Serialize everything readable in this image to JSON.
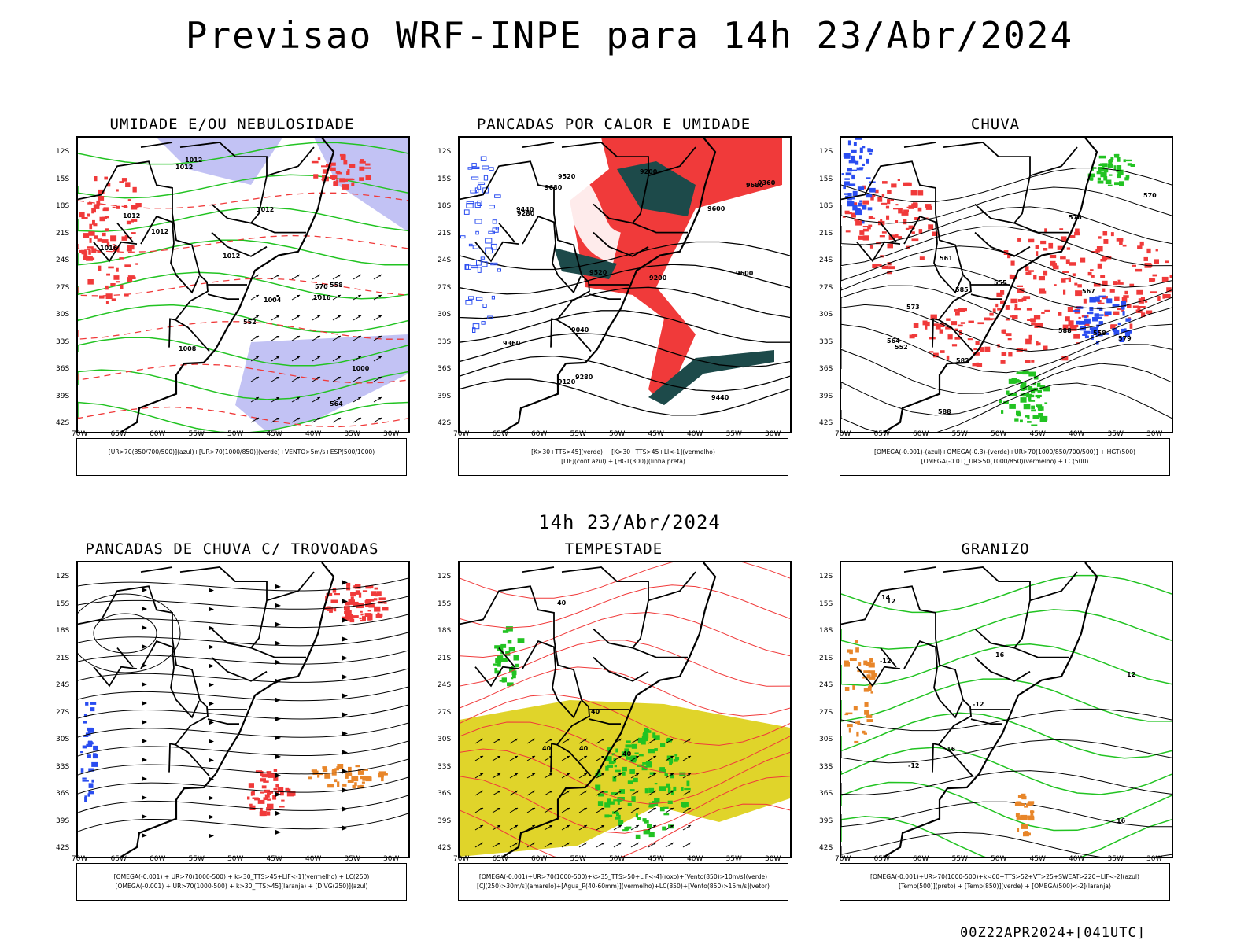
{
  "title": "Previsao WRF-INPE  para 14h 23/Abr/2024",
  "subtitle": "14h 23/Abr/2024",
  "footer": "00Z22APR2024+[041UTC]",
  "lat_ticks": [
    "12S",
    "15S",
    "18S",
    "21S",
    "24S",
    "27S",
    "30S",
    "33S",
    "36S",
    "39S",
    "42S"
  ],
  "lon_ticks": [
    "70W",
    "65W",
    "60W",
    "55W",
    "50W",
    "45W",
    "40W",
    "35W",
    "30W"
  ],
  "colors": {
    "green": "#22c322",
    "red": "#f03a3a",
    "blue": "#2a4df0",
    "lavender": "#a8a8f0",
    "darkteal": "#1d4a4a",
    "yellow": "#e0d42a",
    "orange": "#e8862a"
  },
  "panels": [
    {
      "title": "UMIDADE E/OU NEBULOSIDADE",
      "legend": [
        "[UR>70(850/700/500)](azul)+[UR>70(1000/850)](verde)+VENTO>5m/s+ESP(500/1000)"
      ],
      "labels": [
        "1012",
        "1012",
        "1012",
        "1012",
        "1008",
        "1012",
        "1016",
        "1004",
        "1000",
        "1016",
        "1012",
        "570",
        "564",
        "558",
        "552"
      ]
    },
    {
      "title": "PANCADAS POR CALOR E UMIDADE",
      "legend": [
        "[K>30+TTS>45](verde) + [K>30+TTS>45+LI<-1](vermelho)",
        "[LIF](cont.azul) + [HGT(300)](linha preta)"
      ],
      "labels": [
        "9680",
        "9600",
        "9520",
        "9440",
        "9360",
        "9280",
        "9200",
        "9120",
        "9040",
        "9680",
        "9600",
        "9520",
        "9440",
        "9360",
        "9280",
        "9200"
      ]
    },
    {
      "title": "CHUVA",
      "legend": [
        "[OMEGA(-0.001)-(azul)+OMEGA(-0.3)-(verde)+UR>70(1000/850/700/500)] + HGT(500)",
        "[OMEGA(-0.01)_UR>50(1000/850)(vermelho) + LC(500)"
      ],
      "labels": [
        "588",
        "588",
        "585",
        "582",
        "579",
        "576",
        "573",
        "570",
        "567",
        "564",
        "561",
        "558",
        "555",
        "552"
      ]
    },
    {
      "title": "PANCADAS DE CHUVA C/ TROVOADAS",
      "legend": [
        "[OMEGA(-0.001) + UR>70(1000-500) + k>30_TTS>45+LIF<-1](vermelho) + LC(250)",
        "[OMEGA(-0.001) + UR>70(1000-500) + k>30_TTS>45](laranja) + [DIVG(250)](azul)"
      ],
      "labels": []
    },
    {
      "title": "TEMPESTADE",
      "legend": [
        "[OMEGA(-0.001)+UR>70(1000-500)+k>35_TTS>50+LIF<-4](roxo)+[Vento(850)>10m/s](verde)",
        "[CJ(250)>30m/s](amarelo)+[Agua_P(40-60mm)](vermelho)+LC(850)+[Vento(850)>15m/s](vetor)"
      ],
      "labels": [
        "40",
        "40",
        "40",
        "40",
        "40"
      ]
    },
    {
      "title": "GRANIZO",
      "legend": [
        "[OMEGA(-0.001)+UR>70(1000-500)+k<60+TTS>52+VT>25+SWEAT>220+LIF<-2](azul)",
        "[Temp(500)](preto) + [Temp(850)](verde) + [OMEGA(500)<-2](laranja)"
      ],
      "labels": [
        "-12",
        "-12",
        "-12",
        "12",
        "16",
        "16",
        "16",
        "14",
        "12"
      ]
    }
  ]
}
